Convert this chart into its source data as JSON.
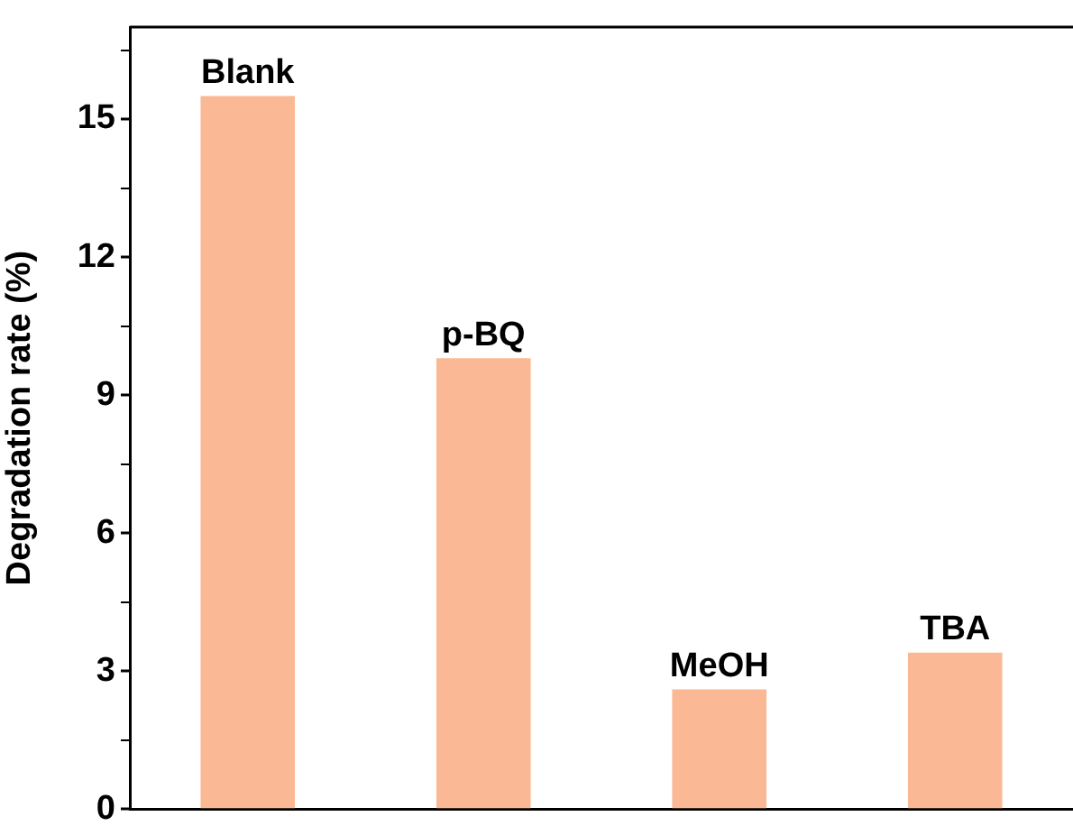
{
  "chart_data": {
    "type": "bar",
    "ylabel": "Degradation rate (%)",
    "categories": [
      "Blank",
      "p-BQ",
      "MeOH",
      "TBA"
    ],
    "values": [
      15.5,
      9.8,
      2.6,
      3.4
    ],
    "color": "#fbb894",
    "ylim": [
      0,
      17
    ],
    "yticks": [
      0,
      {
        "value": 1.5,
        "label": null
      },
      3,
      {
        "value": 4.5,
        "label": null
      },
      6,
      {
        "value": 7.5,
        "label": null
      },
      9,
      {
        "value": 10.5,
        "label": null
      },
      12,
      {
        "value": 13.5,
        "label": null
      },
      15,
      {
        "value": 16.5,
        "label": null
      }
    ],
    "tick_labels": "y",
    "grid": false,
    "legend": false
  }
}
